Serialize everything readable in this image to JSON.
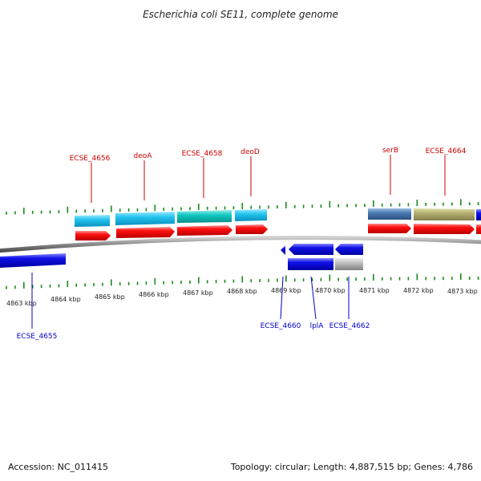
{
  "title": "Escherichia coli SE11, complete genome",
  "accession": "Accession: NC_011415",
  "topology": "Topology: circular; Length: 4,887,515 bp; Genes: 4,786",
  "colors": {
    "tick": "#1a8a1a",
    "label_top": "#cc0000",
    "label_bottom": "#0000cc",
    "backbone": "#8a8a8a",
    "red": "#ff1010",
    "blue": "#1010e8",
    "light_blue": "#22c4ee",
    "teal": "#10c8c0",
    "steel": "#4a7ab0",
    "khaki": "#b4b070",
    "grey": "#c0c0c0"
  },
  "kbp_labels": [
    "4863 kbp",
    "4864 kbp",
    "4865 kbp",
    "4866 kbp",
    "4867 kbp",
    "4868 kbp",
    "4869 kbp",
    "4870 kbp",
    "4871 kbp",
    "4872 kbp",
    "4873 kbp"
  ],
  "top_labels": [
    "ECSE_4656",
    "deoA",
    "ECSE_4658",
    "deoD",
    "serB",
    "ECSE_4664"
  ],
  "bottom_labels": [
    "ECSE_4655",
    "ECSE_4660",
    "lplA",
    "ECSE_4662"
  ]
}
